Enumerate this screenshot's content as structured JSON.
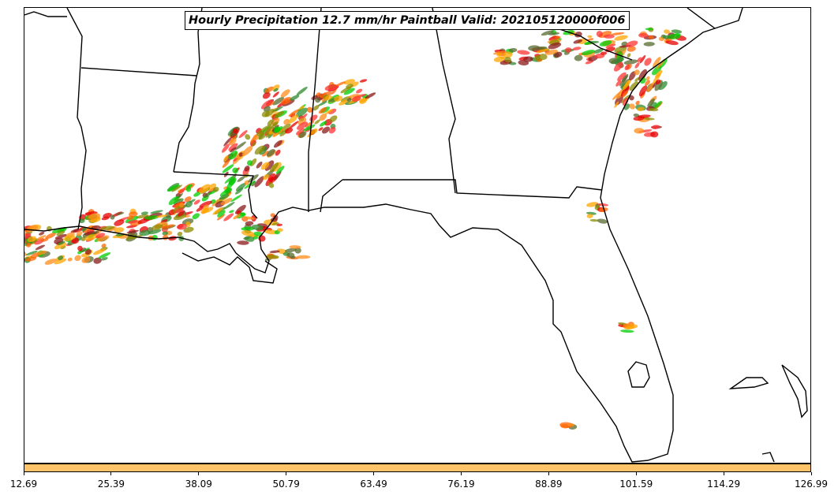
{
  "title": "Hourly Precipitation 12.7 mm/hr Paintball Valid: 202105120000f006",
  "colorbar": {
    "color": "#ffc46a",
    "ticks": [
      "12.69",
      "25.39",
      "38.09",
      "50.79",
      "63.49",
      "76.19",
      "88.89",
      "101.59",
      "114.29",
      "126.99"
    ]
  },
  "member_colors": [
    "#ff8c1a",
    "#e60000",
    "#2e8b2e",
    "#00cc00",
    "#8b1a1a",
    "#8b8b00",
    "#ff6600",
    "#ffa500",
    "#556b2f",
    "#ff3333"
  ]
}
